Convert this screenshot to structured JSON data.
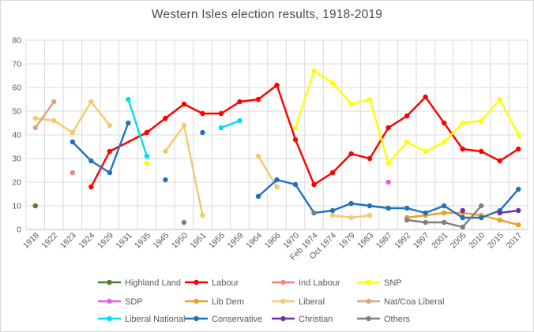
{
  "chart_data": {
    "type": "line",
    "title": "Western Isles election results, 1918-2019",
    "categories": [
      "1918",
      "1922",
      "1923",
      "1924",
      "1929",
      "1931",
      "1935",
      "1945",
      "1950",
      "1951",
      "1955",
      "1959",
      "1964",
      "1966",
      "1970",
      "Feb 1974",
      "Oct 1974",
      "1979",
      "1983",
      "1987",
      "1992",
      "1997",
      "2001",
      "2005",
      "2010",
      "2015",
      "2017"
    ],
    "xlabel": "",
    "ylabel": "",
    "ylim": [
      0,
      80
    ],
    "ytick_step": 10,
    "grid": true,
    "legend_position": "bottom",
    "axis_text_color": "#595959",
    "grid_color": "#d9d9d9",
    "axis_line_color": "#bfbfbf",
    "series": [
      {
        "name": "Highland Land",
        "color": "#507e32",
        "connect_gaps": false,
        "values": [
          10,
          null,
          null,
          null,
          null,
          null,
          null,
          null,
          null,
          null,
          null,
          null,
          null,
          null,
          null,
          null,
          null,
          null,
          null,
          null,
          null,
          null,
          null,
          null,
          null,
          null,
          null
        ]
      },
      {
        "name": "Labour",
        "color": "#ff0000",
        "connect_gaps": true,
        "values": [
          null,
          null,
          null,
          18,
          33,
          null,
          41,
          47,
          53,
          49,
          49,
          54,
          55,
          61,
          38,
          19,
          24,
          32,
          30,
          43,
          48,
          56,
          45,
          34,
          33,
          29,
          34
        ]
      },
      {
        "name": "Ind Labour",
        "color": "#ff8080",
        "connect_gaps": false,
        "values": [
          null,
          null,
          24,
          null,
          null,
          null,
          null,
          null,
          null,
          null,
          null,
          null,
          null,
          null,
          null,
          null,
          null,
          null,
          null,
          null,
          null,
          null,
          null,
          null,
          null,
          null,
          null
        ]
      },
      {
        "name": "SNP",
        "color": "#ffff00",
        "connect_gaps": false,
        "values": [
          null,
          null,
          null,
          null,
          null,
          null,
          28,
          null,
          null,
          null,
          null,
          null,
          null,
          null,
          43,
          67,
          62,
          53,
          55,
          28,
          37,
          33,
          37,
          45,
          46,
          55,
          40
        ]
      },
      {
        "name": "SDP",
        "color": "#e95ce9",
        "connect_gaps": false,
        "values": [
          null,
          null,
          null,
          null,
          null,
          null,
          null,
          null,
          null,
          null,
          null,
          null,
          null,
          null,
          null,
          null,
          null,
          null,
          null,
          20,
          null,
          null,
          null,
          null,
          null,
          null,
          null
        ]
      },
      {
        "name": "Lib Dem",
        "color": "#eaa221",
        "connect_gaps": false,
        "values": [
          null,
          null,
          null,
          null,
          null,
          null,
          null,
          null,
          null,
          null,
          null,
          null,
          null,
          null,
          null,
          null,
          null,
          null,
          null,
          null,
          5,
          6,
          7,
          7,
          6,
          4,
          2
        ]
      },
      {
        "name": "Liberal",
        "color": "#f3ca6e",
        "connect_gaps": false,
        "values": [
          47,
          46,
          41,
          54,
          44,
          null,
          null,
          33,
          44,
          6,
          null,
          null,
          31,
          18,
          null,
          null,
          6,
          5,
          6,
          null,
          null,
          null,
          null,
          null,
          null,
          null,
          null
        ]
      },
      {
        "name": "Nat/Coa Liberal",
        "color": "#dda380",
        "connect_gaps": false,
        "values": [
          43,
          54,
          null,
          null,
          null,
          null,
          null,
          null,
          null,
          null,
          null,
          null,
          null,
          null,
          null,
          null,
          null,
          null,
          null,
          null,
          null,
          null,
          null,
          null,
          null,
          null,
          null
        ]
      },
      {
        "name": "Liberal National",
        "color": "#00dff0",
        "connect_gaps": false,
        "values": [
          null,
          null,
          null,
          null,
          null,
          55,
          31,
          null,
          null,
          null,
          43,
          46,
          null,
          null,
          null,
          null,
          null,
          null,
          null,
          null,
          null,
          null,
          null,
          null,
          null,
          null,
          null
        ]
      },
      {
        "name": "Conservative",
        "color": "#2070c0",
        "connect_gaps": false,
        "values": [
          null,
          null,
          37,
          29,
          24,
          45,
          null,
          21,
          null,
          41,
          null,
          null,
          14,
          21,
          19,
          7,
          8,
          11,
          10,
          9,
          9,
          7,
          10,
          5,
          5,
          8,
          17
        ]
      },
      {
        "name": "Christian",
        "color": "#7030a0",
        "connect_gaps": false,
        "values": [
          null,
          null,
          null,
          null,
          null,
          null,
          null,
          null,
          null,
          null,
          null,
          null,
          null,
          null,
          null,
          null,
          null,
          null,
          null,
          null,
          null,
          null,
          null,
          8,
          null,
          7,
          8
        ]
      },
      {
        "name": "Others",
        "color": "#808080",
        "connect_gaps": false,
        "values": [
          null,
          null,
          null,
          null,
          null,
          null,
          null,
          null,
          3,
          null,
          null,
          null,
          null,
          null,
          null,
          7,
          null,
          null,
          null,
          null,
          4,
          3,
          3,
          1,
          10,
          null,
          null
        ]
      }
    ]
  }
}
